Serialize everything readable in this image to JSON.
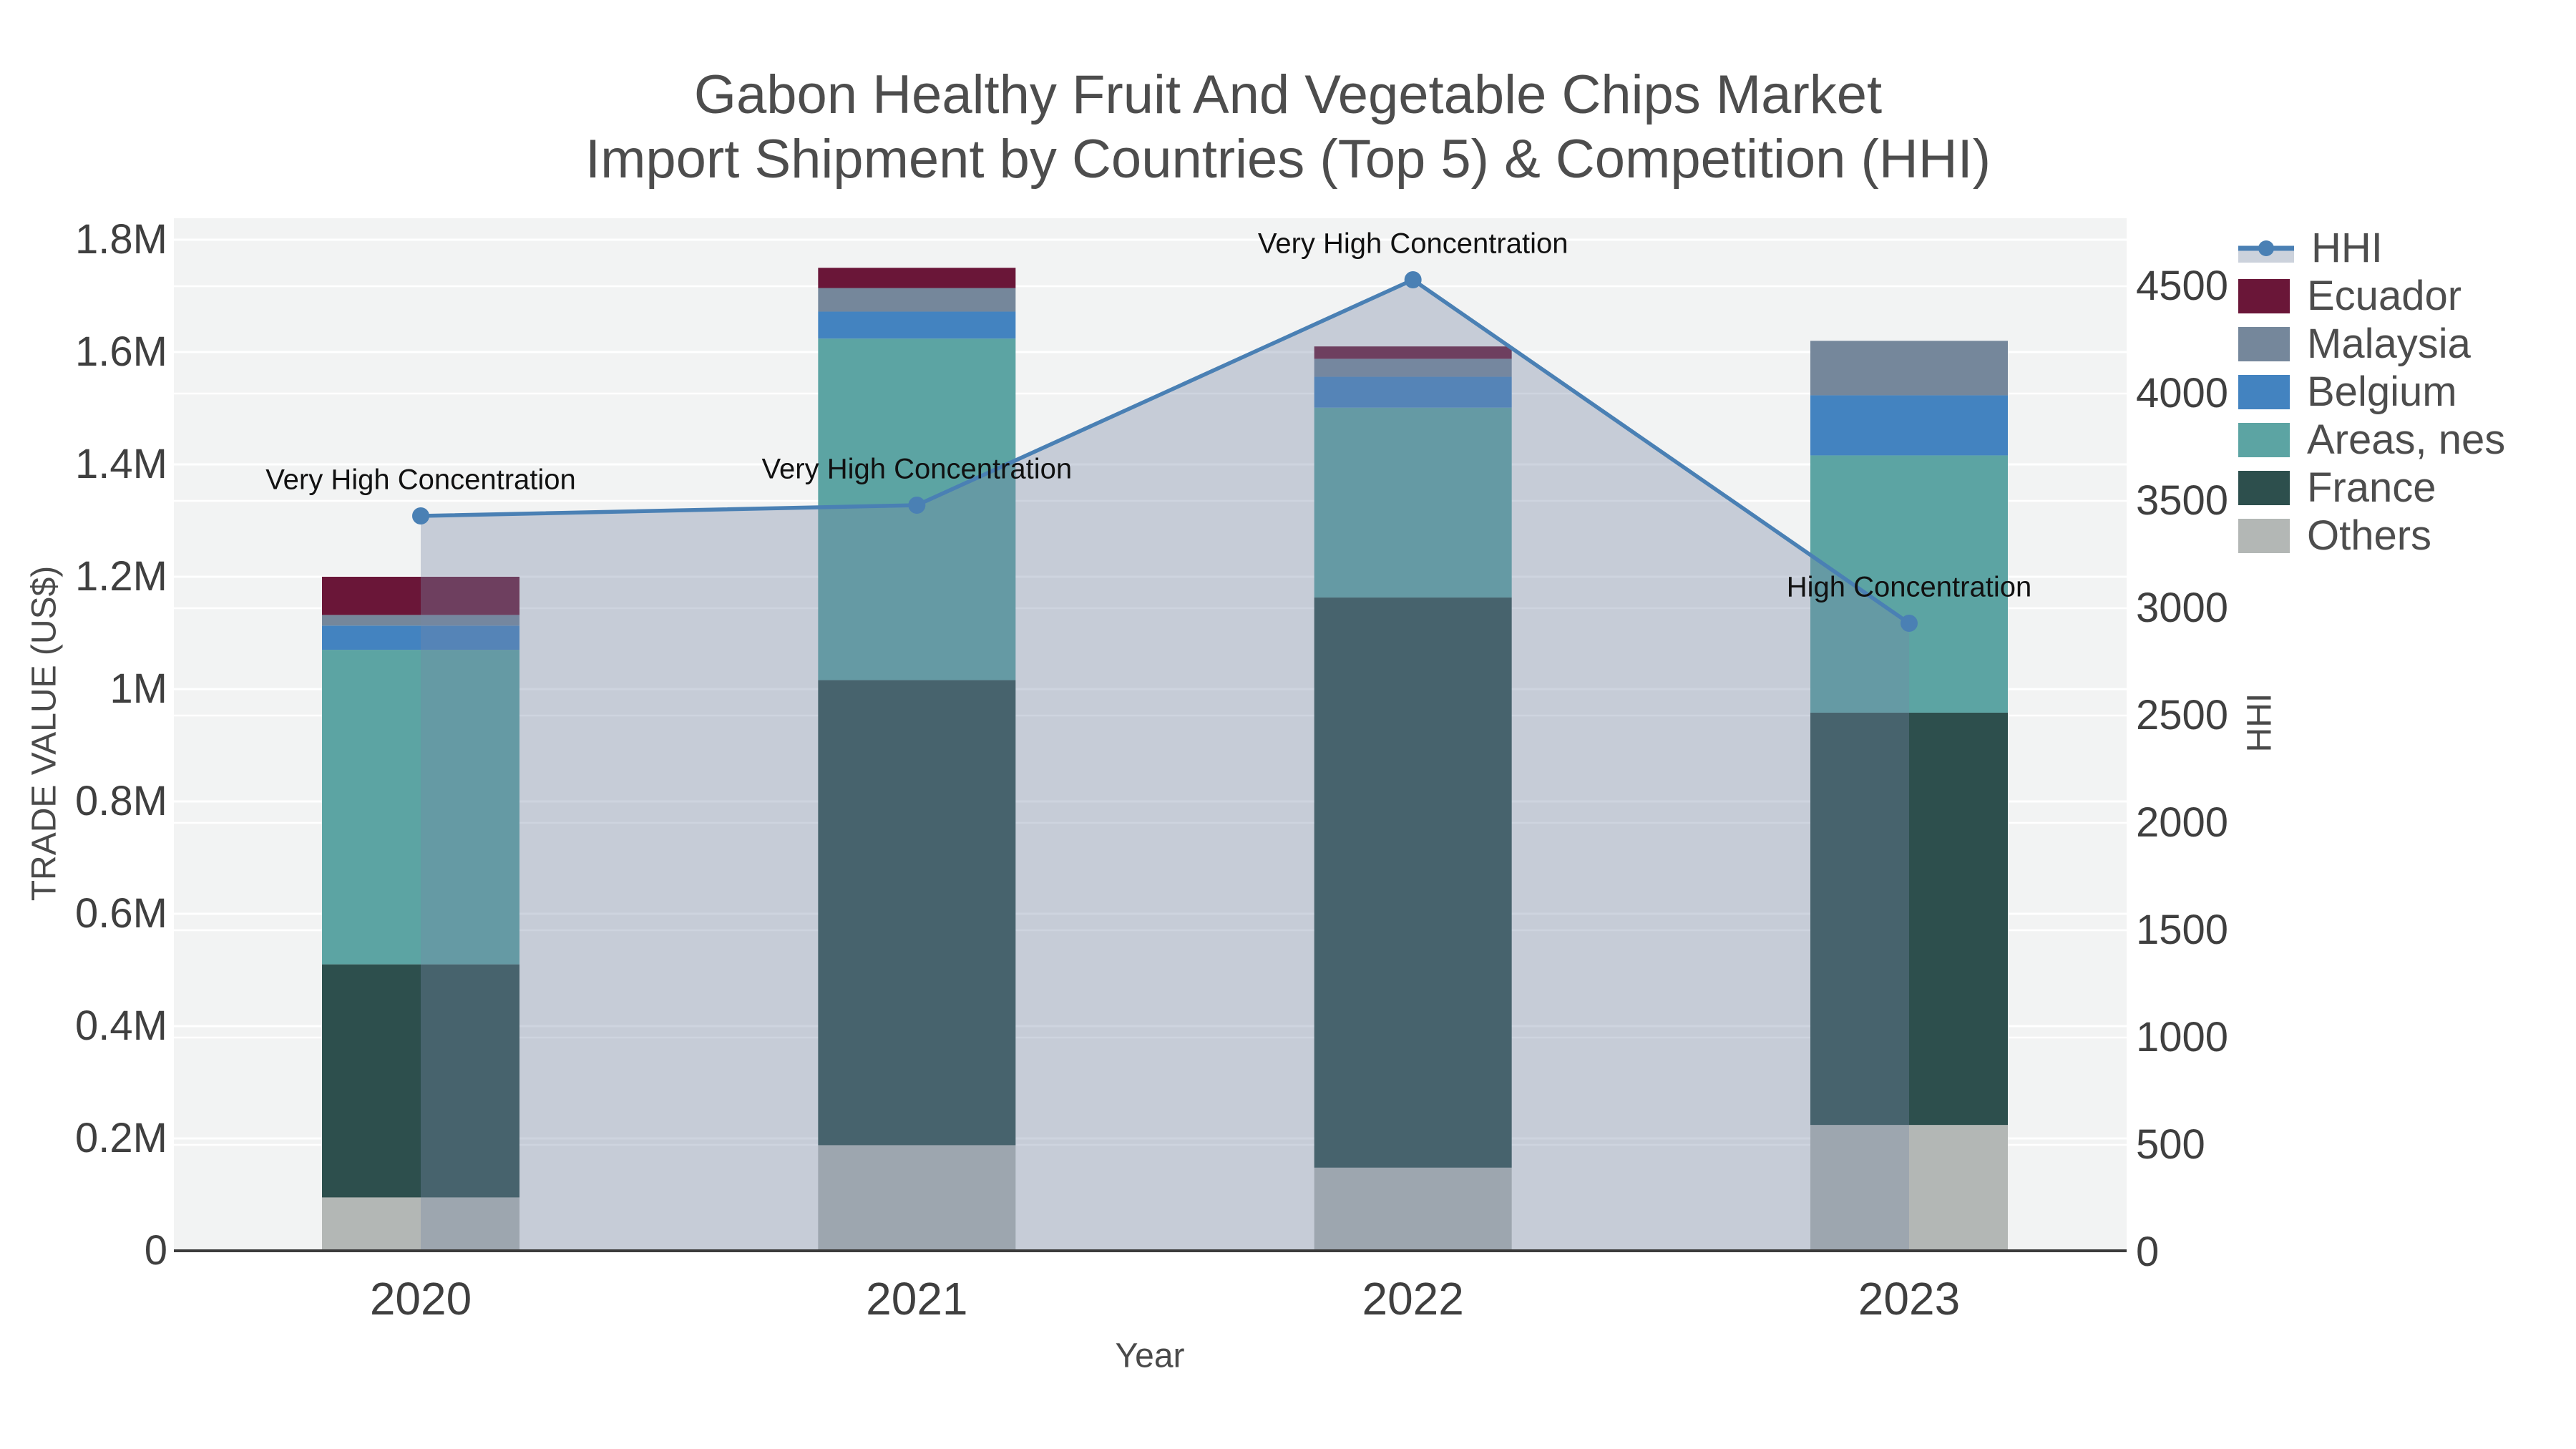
{
  "page": {
    "background": "#ffffff"
  },
  "chart_data": {
    "type": "bar",
    "subtype": "stacked-bar-with-line-overlay",
    "title": "Gabon Healthy Fruit And Vegetable Chips Market",
    "subtitle": "Import Shipment by Countries (Top 5) & Competition (HHI)",
    "xlabel": "Year",
    "ylabel_left": "TRADE VALUE (US$)",
    "ylabel_right": "HHI",
    "categories": [
      "2020",
      "2021",
      "2022",
      "2023"
    ],
    "stack_order": [
      "Others",
      "France",
      "Areas, nes",
      "Belgium",
      "Malaysia",
      "Ecuador"
    ],
    "series": [
      {
        "name": "Others",
        "axis": "left",
        "color": "#b3b7b5",
        "values": [
          95000,
          188000,
          148000,
          224000
        ]
      },
      {
        "name": "France",
        "axis": "left",
        "color": "#2d4f4d",
        "values": [
          415000,
          828000,
          1015000,
          734000
        ]
      },
      {
        "name": "Areas, nes",
        "axis": "left",
        "color": "#5ca4a3",
        "values": [
          560000,
          608000,
          338000,
          458000
        ]
      },
      {
        "name": "Belgium",
        "axis": "left",
        "color": "#4383c0",
        "values": [
          43000,
          48000,
          55000,
          107000
        ]
      },
      {
        "name": "Malaysia",
        "axis": "left",
        "color": "#75879b",
        "values": [
          19000,
          42000,
          32000,
          97000
        ]
      },
      {
        "name": "Ecuador",
        "axis": "left",
        "color": "#6a1638",
        "values": [
          68000,
          36000,
          22000,
          0
        ]
      }
    ],
    "line_series": {
      "name": "HHI",
      "axis": "right",
      "type": "line+markers+area",
      "color": "#4a80b4",
      "area_color": "#7687a6",
      "area_opacity": 0.36,
      "values": [
        3430,
        3480,
        4530,
        2930
      ]
    },
    "annotations": [
      {
        "category": "2020",
        "text": "Very High Concentration"
      },
      {
        "category": "2021",
        "text": "Very High Concentration"
      },
      {
        "category": "2022",
        "text": "Very High Concentration"
      },
      {
        "category": "2023",
        "text": "High Concentration"
      }
    ],
    "yaxis_left": {
      "tick_labels": [
        "0",
        "0.2M",
        "0.4M",
        "0.6M",
        "0.8M",
        "1M",
        "1.2M",
        "1.4M",
        "1.6M",
        "1.8M"
      ],
      "tick_values": [
        0,
        200000,
        400000,
        600000,
        800000,
        1000000,
        1200000,
        1400000,
        1600000,
        1800000
      ],
      "ylim": [
        0,
        1840000
      ]
    },
    "yaxis_right": {
      "tick_labels": [
        "0",
        "500",
        "1000",
        "1500",
        "2000",
        "2500",
        "3000",
        "3500",
        "4000",
        "4500"
      ],
      "tick_values": [
        0,
        500,
        1000,
        1500,
        2000,
        2500,
        3000,
        3500,
        4000,
        4500
      ],
      "ylim": [
        0,
        4815
      ]
    },
    "legend": {
      "position": "right",
      "entries": [
        "HHI",
        "Ecuador",
        "Malaysia",
        "Belgium",
        "Areas, nes",
        "France",
        "Others"
      ]
    },
    "style_colors": {
      "plot_background": "#f2f3f3",
      "gridline": "#ffffff",
      "axis_line": "#3c3c3c",
      "tick_text": "#3f3f3f",
      "title_text": "#4d4d4d",
      "annotation_text": "#111111",
      "legend_area_swatch": "#ccd2dc"
    },
    "grid": "horizontal-only, both axes"
  }
}
